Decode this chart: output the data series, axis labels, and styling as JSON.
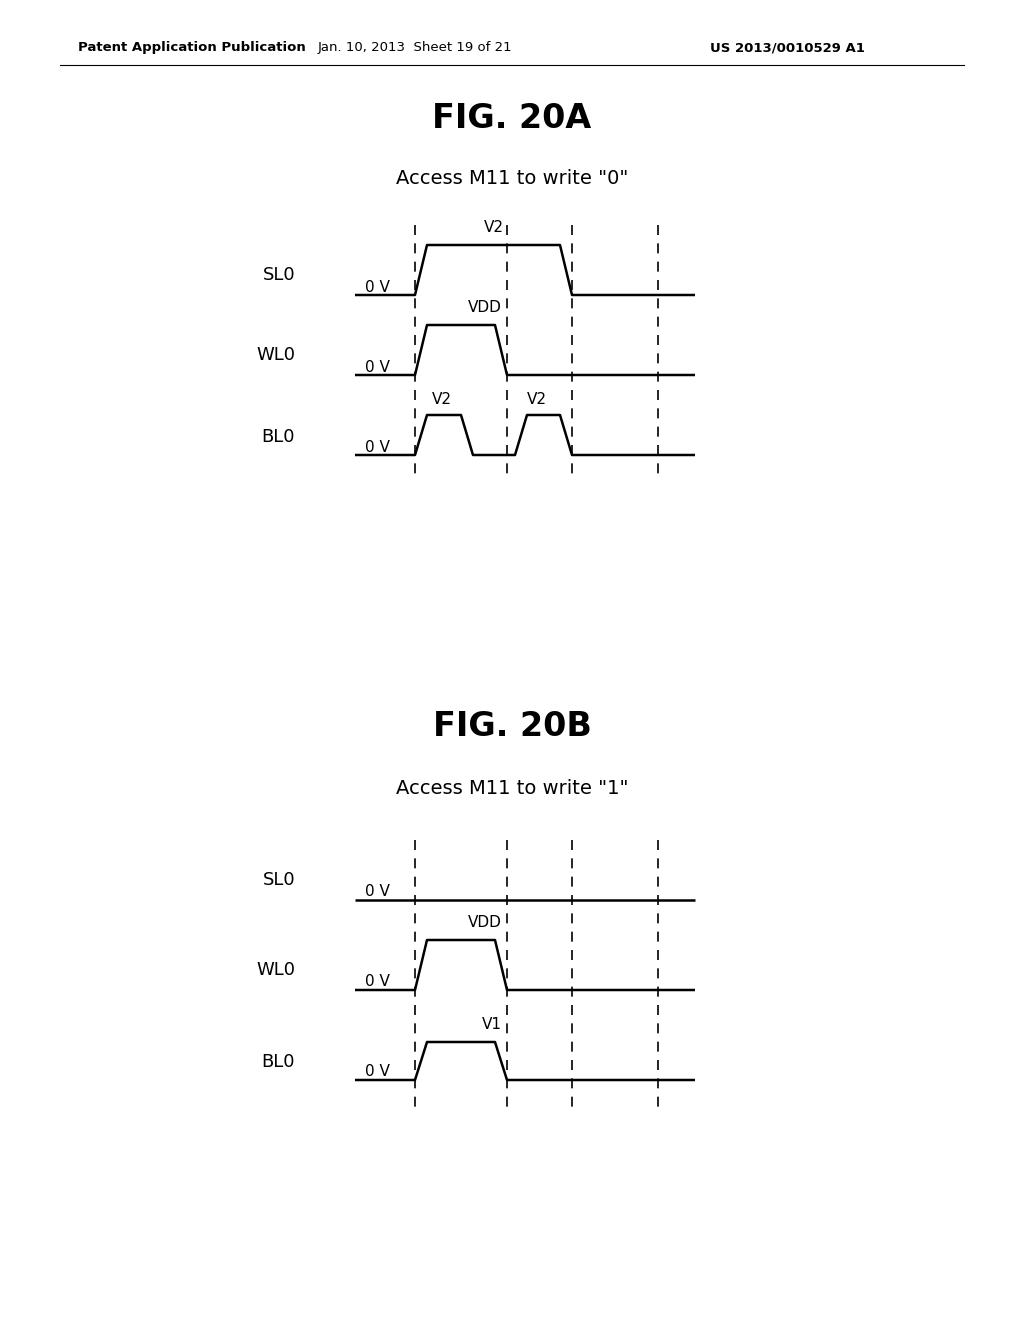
{
  "bg_color": "#ffffff",
  "text_color": "#000000",
  "header_left": "Patent Application Publication",
  "header_center": "Jan. 10, 2013  Sheet 19 of 21",
  "header_right": "US 2013/0010529 A1",
  "fig_a_title": "FIG. 20A",
  "fig_a_subtitle": "Access M11 to write \"0\"",
  "fig_b_title": "FIG. 20B",
  "fig_b_subtitle": "Access M11 to write \"1\"",
  "signal_color": "#000000",
  "dashed_color": "#000000",
  "line_width": 1.8,
  "dashed_lw": 1.2,
  "ramp": 12
}
